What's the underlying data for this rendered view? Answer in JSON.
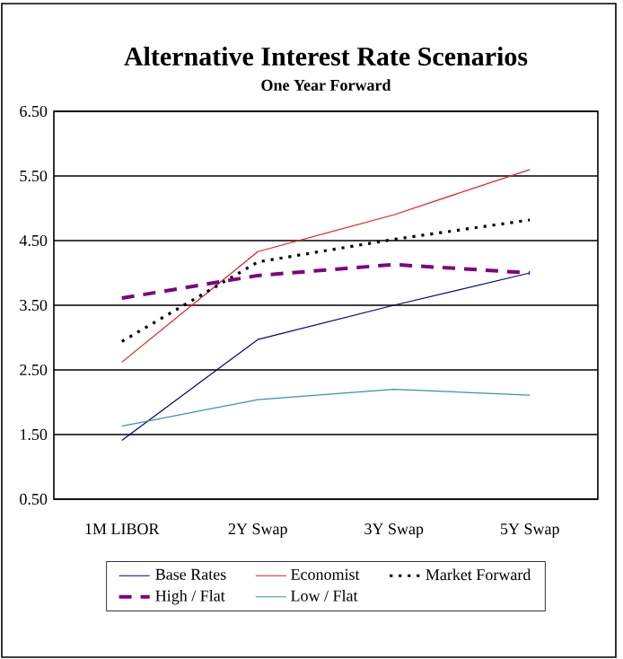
{
  "chart_data": {
    "type": "line",
    "title": "Alternative Interest Rate Scenarios",
    "subtitle": "One Year Forward",
    "categories": [
      "1M LIBOR",
      "2Y Swap",
      "3Y Swap",
      "5Y Swap"
    ],
    "series": [
      {
        "name": "Base Rates",
        "color": "#000080",
        "line_style": "solid",
        "values": [
          1.41,
          2.97,
          3.5,
          4.0
        ]
      },
      {
        "name": "Economist",
        "color": "#e02020",
        "line_style": "solid",
        "values": [
          2.62,
          4.33,
          4.9,
          5.6
        ]
      },
      {
        "name": "Market Forward",
        "color": "#000000",
        "line_style": "dotted",
        "values": [
          2.94,
          4.17,
          4.52,
          4.82
        ]
      },
      {
        "name": "High / Flat",
        "color": "#800080",
        "line_style": "dashed",
        "values": [
          3.61,
          3.96,
          4.13,
          4.0
        ]
      },
      {
        "name": "Low / Flat",
        "color": "#339999",
        "line_style": "solid",
        "values": [
          1.63,
          2.04,
          2.2,
          2.11
        ]
      }
    ],
    "ylim": [
      0.5,
      6.5
    ],
    "yticks": [
      {
        "value": 0.5,
        "label": "0.50"
      },
      {
        "value": 1.5,
        "label": "1.50"
      },
      {
        "value": 2.5,
        "label": "2.50"
      },
      {
        "value": 3.5,
        "label": "3.50"
      },
      {
        "value": 4.5,
        "label": "4.50"
      },
      {
        "value": 5.5,
        "label": "5.50"
      },
      {
        "value": 6.5,
        "label": "6.50"
      }
    ],
    "grid": "y",
    "legend": "bottom",
    "marker": "none"
  }
}
